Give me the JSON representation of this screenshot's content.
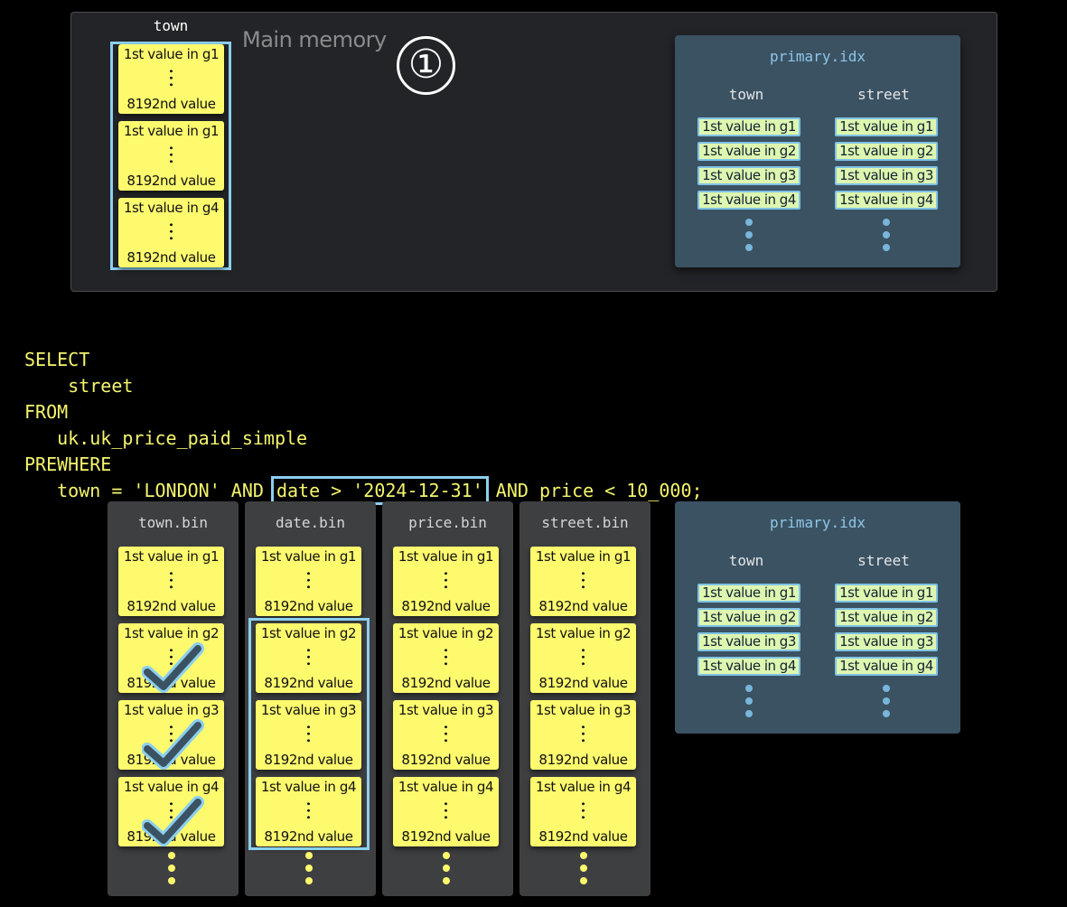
{
  "main_memory": {
    "label": "Main memory",
    "column_label": "town",
    "step_marker": "①",
    "cards": [
      {
        "first": "1st value in g1",
        "last": "8192nd value"
      },
      {
        "first": "1st value in g1",
        "last": "8192nd value"
      },
      {
        "first": "1st value in g4",
        "last": "8192nd value"
      }
    ]
  },
  "primary_idx": {
    "title": "primary.idx",
    "columns": [
      "town",
      "street"
    ],
    "rows": [
      "1st value in g1",
      "1st value in g2",
      "1st value in g3",
      "1st value in g4"
    ]
  },
  "query": {
    "lines": [
      "SELECT",
      "    street",
      "FROM",
      "   uk.uk_price_paid_simple",
      "PREWHERE"
    ],
    "last_prefix": "   town = 'LONDON' AND ",
    "last_highlight": "date > '2024-12-31'",
    "last_suffix": " AND price < 10_000;"
  },
  "bin_files": [
    {
      "name": "town.bin",
      "checked_groups": [
        2,
        3,
        4
      ]
    },
    {
      "name": "date.bin",
      "highlighted_groups": [
        2,
        3,
        4
      ]
    },
    {
      "name": "price.bin"
    },
    {
      "name": "street.bin"
    }
  ],
  "granules": [
    {
      "first": "1st value in g1",
      "last": "8192nd value"
    },
    {
      "first": "1st value in g2",
      "last": "8192nd value"
    },
    {
      "first": "1st value in g3",
      "last": "8192nd value"
    },
    {
      "first": "1st value in g4",
      "last": "8192nd value"
    }
  ],
  "colors": {
    "card": "#fdfa6e",
    "highlight": "#8ccfee",
    "index_panel": "#3b5262",
    "sql": "#f5f56e"
  }
}
